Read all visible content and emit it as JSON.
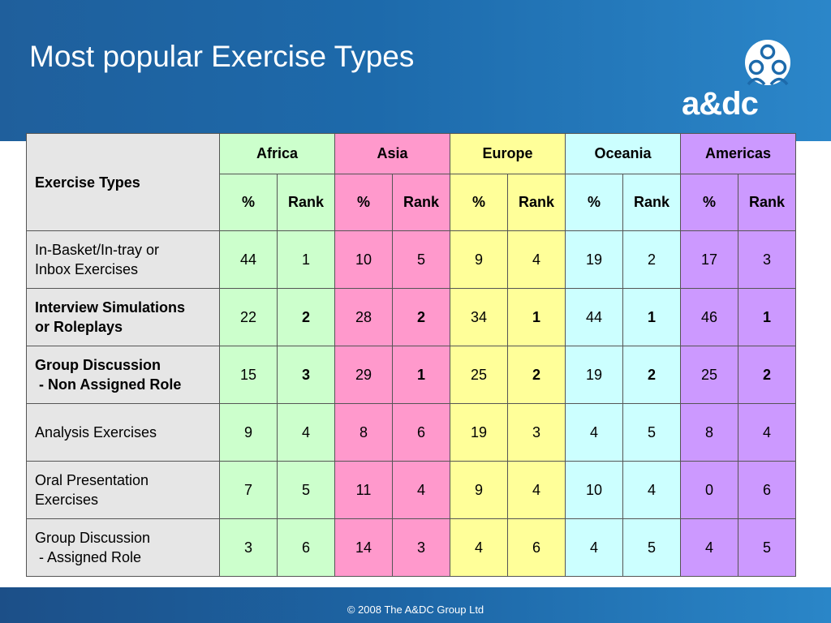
{
  "slide": {
    "title": "Most popular Exercise Types",
    "logo_text": "a&dc",
    "footer": "© 2008 The A&DC Group Ltd"
  },
  "colors": {
    "Africa": "#ccffcc",
    "Asia": "#ff99cc",
    "Europe": "#ffff99",
    "Oceania": "#ccffff",
    "Americas": "#cc99ff",
    "row_header": "#e6e6e6",
    "header_blue": "#1d6aab"
  },
  "table": {
    "corner_label": "Exercise Types",
    "regions": [
      "Africa",
      "Asia",
      "Europe",
      "Oceania",
      "Americas"
    ],
    "sub_headers": [
      "%",
      "Rank"
    ],
    "rows": [
      {
        "name": "In-Basket/In-tray or\nInbox Exercises",
        "bold_name": false,
        "values": [
          [
            "44",
            "1"
          ],
          [
            "10",
            "5"
          ],
          [
            "9",
            "4"
          ],
          [
            "19",
            "2"
          ],
          [
            "17",
            "3"
          ]
        ]
      },
      {
        "name": "Interview Simulations\nor Roleplays",
        "bold_name": true,
        "values": [
          [
            "22",
            "2"
          ],
          [
            "28",
            "2"
          ],
          [
            "34",
            "1"
          ],
          [
            "44",
            "1"
          ],
          [
            "46",
            "1"
          ]
        ]
      },
      {
        "name": "Group Discussion\n - Non Assigned Role",
        "bold_name": true,
        "values": [
          [
            "15",
            "3"
          ],
          [
            "29",
            "1"
          ],
          [
            "25",
            "2"
          ],
          [
            "19",
            "2"
          ],
          [
            "25",
            "2"
          ]
        ]
      },
      {
        "name": "Analysis Exercises",
        "bold_name": false,
        "values": [
          [
            "9",
            "4"
          ],
          [
            "8",
            "6"
          ],
          [
            "19",
            "3"
          ],
          [
            "4",
            "5"
          ],
          [
            "8",
            "4"
          ]
        ]
      },
      {
        "name": "Oral Presentation\nExercises",
        "bold_name": false,
        "values": [
          [
            "7",
            "5"
          ],
          [
            "11",
            "4"
          ],
          [
            "9",
            "4"
          ],
          [
            "10",
            "4"
          ],
          [
            "0",
            "6"
          ]
        ]
      },
      {
        "name": "Group Discussion\n - Assigned Role",
        "bold_name": false,
        "values": [
          [
            "3",
            "6"
          ],
          [
            "14",
            "3"
          ],
          [
            "4",
            "6"
          ],
          [
            "4",
            "5"
          ],
          [
            "4",
            "5"
          ]
        ]
      }
    ]
  }
}
